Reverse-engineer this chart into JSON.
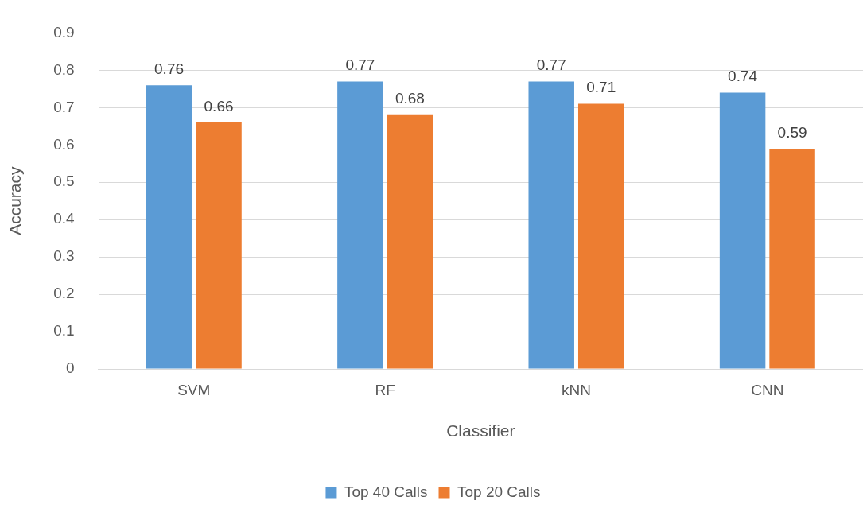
{
  "chart_data": {
    "type": "bar",
    "xlabel": "Classifier",
    "ylabel": "Accuracy",
    "categories": [
      "SVM",
      "RF",
      "kNN",
      "CNN"
    ],
    "series": [
      {
        "name": "Top 40 Calls",
        "color": "#5b9bd5",
        "values": [
          0.76,
          0.77,
          0.77,
          0.74
        ]
      },
      {
        "name": "Top 20 Calls",
        "color": "#ed7d31",
        "values": [
          0.66,
          0.68,
          0.71,
          0.59
        ]
      }
    ],
    "ylim": [
      0,
      0.9
    ],
    "yticks": [
      0,
      0.1,
      0.2,
      0.3,
      0.4,
      0.5,
      0.6,
      0.7,
      0.8,
      0.9
    ],
    "grid": "y",
    "legend": "bottom",
    "data_labels": true
  }
}
